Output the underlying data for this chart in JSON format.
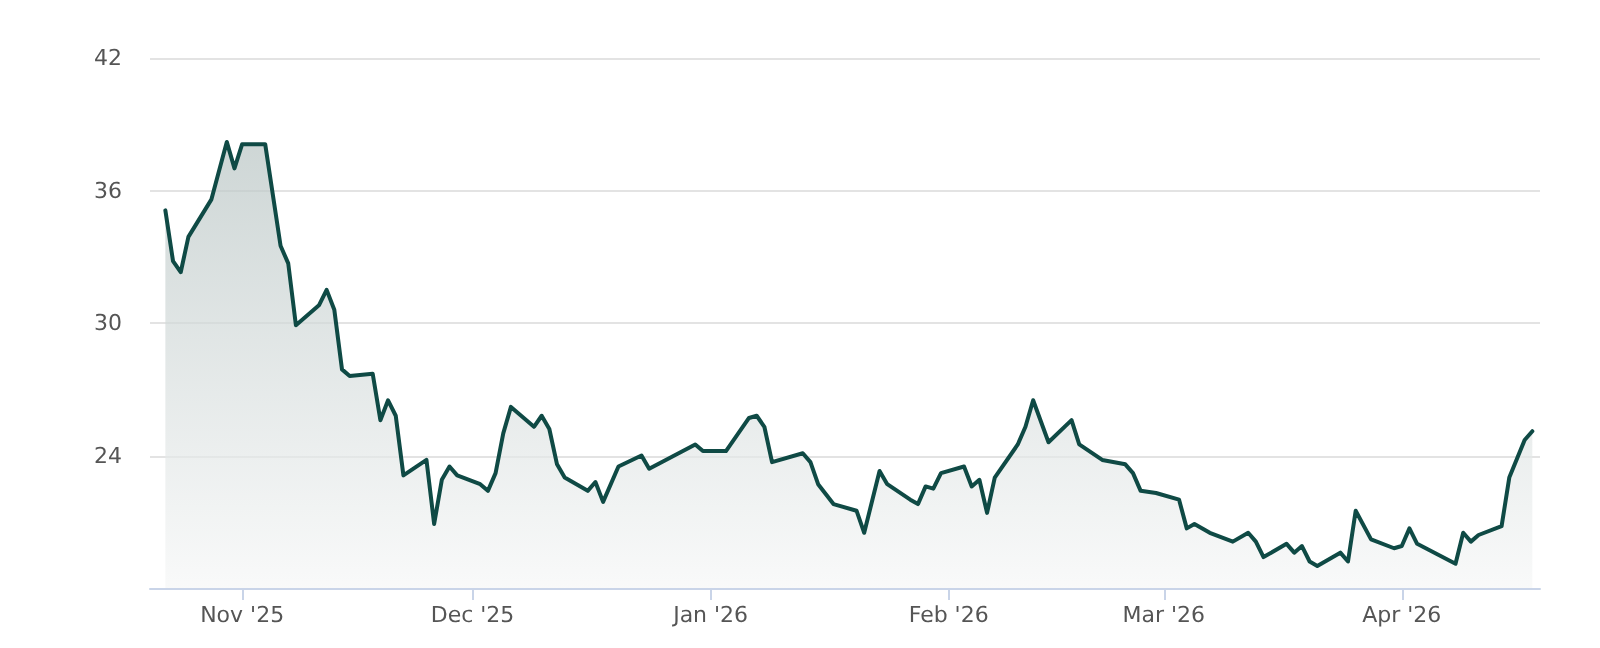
{
  "chart_data": {
    "type": "area",
    "color": "#0f4a45",
    "x": [
      "2025-10-22",
      "2025-10-23",
      "2025-10-24",
      "2025-10-25",
      "2025-10-28",
      "2025-10-30",
      "2025-10-31",
      "2025-11-01",
      "2025-11-04",
      "2025-11-06",
      "2025-11-07",
      "2025-11-08",
      "2025-11-11",
      "2025-11-12",
      "2025-11-13",
      "2025-11-14",
      "2025-11-15",
      "2025-11-18",
      "2025-11-19",
      "2025-11-20",
      "2025-11-21",
      "2025-11-22",
      "2025-11-25",
      "2025-11-26",
      "2025-11-27",
      "2025-11-28",
      "2025-11-29",
      "2025-12-02",
      "2025-12-03",
      "2025-12-04",
      "2025-12-05",
      "2025-12-06",
      "2025-12-09",
      "2025-12-10",
      "2025-12-11",
      "2025-12-12",
      "2025-12-13",
      "2025-12-16",
      "2025-12-17",
      "2025-12-18",
      "2025-12-20",
      "2025-12-23",
      "2025-12-24",
      "2025-12-30",
      "2025-12-31",
      "2026-01-03",
      "2026-01-06",
      "2026-01-07",
      "2026-01-08",
      "2026-01-09",
      "2026-01-13",
      "2026-01-14",
      "2026-01-15",
      "2026-01-17",
      "2026-01-20",
      "2026-01-21",
      "2026-01-23",
      "2026-01-24",
      "2026-01-27",
      "2026-01-28",
      "2026-01-29",
      "2026-01-30",
      "2026-01-31",
      "2026-02-03",
      "2026-02-04",
      "2026-02-05",
      "2026-02-06",
      "2026-02-07",
      "2026-02-10",
      "2026-02-11",
      "2026-02-12",
      "2026-02-14",
      "2026-02-17",
      "2026-02-18",
      "2026-02-21",
      "2026-02-24",
      "2026-02-25",
      "2026-02-26",
      "2026-02-28",
      "2026-03-03",
      "2026-03-04",
      "2026-03-05",
      "2026-03-07",
      "2026-03-10",
      "2026-03-12",
      "2026-03-13",
      "2026-03-14",
      "2026-03-17",
      "2026-03-18",
      "2026-03-19",
      "2026-03-20",
      "2026-03-21",
      "2026-03-24",
      "2026-03-25",
      "2026-03-26",
      "2026-03-28",
      "2026-03-31",
      "2026-04-01",
      "2026-04-02",
      "2026-04-03",
      "2026-04-08",
      "2026-04-09",
      "2026-04-10",
      "2026-04-11",
      "2026-04-14",
      "2026-04-15",
      "2026-04-17",
      "2026-04-18"
    ],
    "values": [
      35.1,
      32.8,
      32.3,
      33.9,
      35.6,
      38.2,
      37.0,
      38.1,
      38.1,
      33.5,
      32.7,
      29.9,
      30.8,
      31.5,
      30.6,
      27.9,
      27.6,
      27.7,
      25.6,
      26.5,
      25.8,
      23.1,
      23.8,
      20.9,
      22.9,
      23.5,
      23.1,
      22.7,
      22.4,
      23.2,
      25.0,
      26.2,
      25.3,
      25.8,
      25.2,
      23.6,
      23.0,
      22.4,
      22.8,
      21.9,
      23.5,
      24.0,
      23.4,
      24.5,
      24.2,
      24.2,
      25.7,
      25.8,
      25.3,
      23.7,
      24.1,
      23.7,
      22.7,
      21.8,
      21.5,
      20.5,
      23.3,
      22.7,
      22.0,
      21.8,
      22.6,
      22.5,
      23.2,
      23.5,
      22.6,
      22.9,
      21.4,
      23.0,
      24.5,
      25.3,
      26.5,
      24.6,
      25.6,
      24.5,
      23.8,
      23.6,
      23.2,
      22.4,
      22.3,
      22.0,
      20.7,
      20.9,
      20.5,
      20.1,
      20.5,
      20.1,
      19.4,
      20.0,
      19.6,
      19.9,
      19.2,
      19.0,
      19.6,
      19.2,
      21.5,
      20.2,
      19.8,
      19.9,
      20.7,
      20.0,
      19.1,
      20.5,
      20.1,
      20.4,
      20.8,
      23.0,
      24.7,
      25.1
    ],
    "xlim": [
      "2025-10-20",
      "2026-04-19"
    ],
    "xticks": [
      {
        "value": "2025-11-01",
        "label": "Nov '25"
      },
      {
        "value": "2025-12-01",
        "label": "Dec '25"
      },
      {
        "value": "2026-01-01",
        "label": "Jan '26"
      },
      {
        "value": "2026-02-01",
        "label": "Feb '26"
      },
      {
        "value": "2026-03-01",
        "label": "Mar '26"
      },
      {
        "value": "2026-04-01",
        "label": "Apr '26"
      }
    ],
    "ylim": [
      18,
      42
    ],
    "yticks": [
      24,
      30,
      36,
      42
    ],
    "grid": "y",
    "marker": "none",
    "line_style": "solid"
  }
}
